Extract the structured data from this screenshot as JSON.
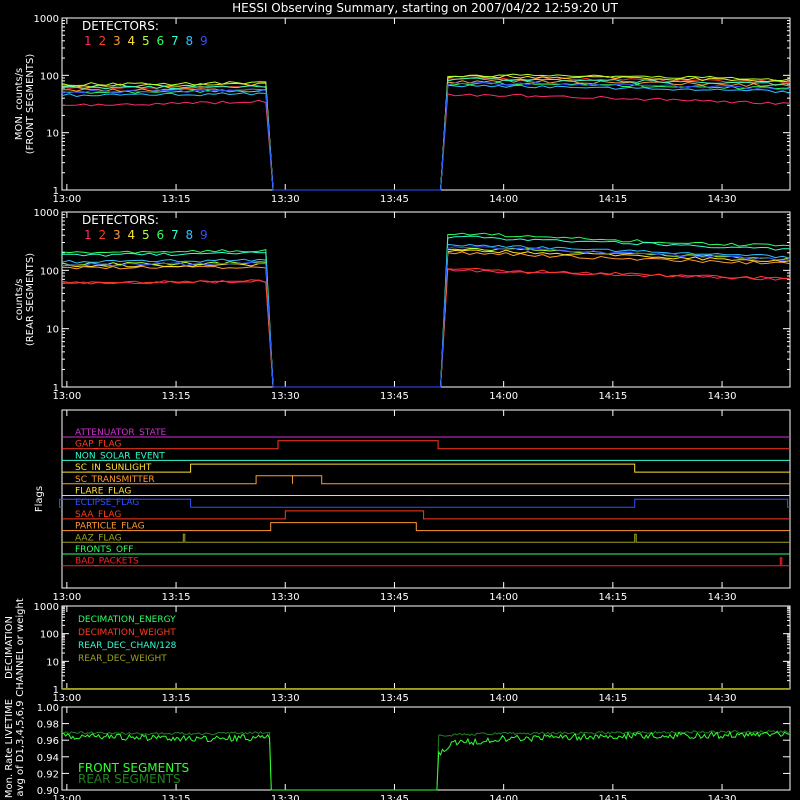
{
  "title": "HESSI Observing Summary, starting on 2007/04/22 12:59:20 UT",
  "time_ticks": [
    "13:00",
    "13:15",
    "13:30",
    "13:45",
    "14:00",
    "14:15",
    "14:30"
  ],
  "detectors_label": "DETECTORS:",
  "detector_colors": [
    "#ff2a6a",
    "#ff3a20",
    "#ff9a30",
    "#ffe030",
    "#b0ff30",
    "#30ff60",
    "#30ffd0",
    "#30c0ff",
    "#3050ff"
  ],
  "panels": {
    "front": {
      "ylabel_line1": "MON. counts/s",
      "ylabel_line2": "(FRONT SEGMENTS)",
      "ticks": [
        "1",
        "10",
        "100",
        "1000"
      ]
    },
    "rear": {
      "ylabel_line1": "counts/s",
      "ylabel_line2": "(REAR SEGMENTS)",
      "ticks": [
        "1",
        "10",
        "100",
        "1000"
      ]
    },
    "flags": {
      "ylabel": "Flags"
    },
    "decimation": {
      "ylabel_line1": "DECIMATION",
      "ylabel_line2": "CHANNEL or weight",
      "ticks": [
        "1",
        "10",
        "100",
        "1000"
      ]
    },
    "livetime": {
      "ylabel_line1": "Mon. Rate LIVETIME",
      "ylabel_line2": "avg of D1,3,4,5,6,9",
      "ticks": [
        "0.90",
        "0.92",
        "0.94",
        "0.96",
        "0.98",
        "1.00"
      ]
    }
  },
  "chart_data": [
    {
      "type": "line",
      "title": "HESSI Observing Summary, starting on 2007/04/22 12:59:20 UT",
      "ylabel": "MON. counts/s (FRONT SEGMENTS)",
      "yscale": "log",
      "ylim": [
        1,
        1000
      ],
      "xlim": [
        "12:59:20",
        "14:39:20"
      ],
      "gap": [
        "13:28",
        "13:52"
      ],
      "series": [
        {
          "name": "1",
          "color": "#ff2a6a",
          "x": [
            "13:00",
            "13:15",
            "13:28",
            "13:52",
            "14:00",
            "14:15",
            "14:30",
            "14:39"
          ],
          "values": [
            30,
            32,
            35,
            45,
            45,
            40,
            35,
            32
          ]
        },
        {
          "name": "2",
          "color": "#ff3a20",
          "x": [
            "13:00",
            "13:15",
            "13:28",
            "13:52",
            "14:00",
            "14:15",
            "14:30",
            "14:39"
          ],
          "values": [
            60,
            62,
            65,
            85,
            90,
            85,
            80,
            75
          ]
        },
        {
          "name": "3",
          "color": "#ff9a30",
          "x": [
            "13:00",
            "13:15",
            "13:28",
            "13:52",
            "14:00",
            "14:15",
            "14:30",
            "14:39"
          ],
          "values": [
            55,
            55,
            58,
            75,
            80,
            75,
            70,
            65
          ]
        },
        {
          "name": "4",
          "color": "#ffe030",
          "x": [
            "13:00",
            "13:15",
            "13:28",
            "13:52",
            "14:00",
            "14:15",
            "14:30",
            "14:39"
          ],
          "values": [
            65,
            68,
            70,
            95,
            95,
            90,
            85,
            80
          ]
        },
        {
          "name": "5",
          "color": "#b0ff30",
          "x": [
            "13:00",
            "13:15",
            "13:28",
            "13:52",
            "14:00",
            "14:15",
            "14:30",
            "14:39"
          ],
          "values": [
            70,
            72,
            75,
            100,
            100,
            95,
            90,
            85
          ]
        },
        {
          "name": "6",
          "color": "#30ff60",
          "x": [
            "13:00",
            "13:15",
            "13:28",
            "13:52",
            "14:00",
            "14:15",
            "14:30",
            "14:39"
          ],
          "values": [
            50,
            52,
            55,
            70,
            72,
            68,
            62,
            58
          ]
        },
        {
          "name": "7",
          "color": "#30ffd0",
          "x": [
            "13:00",
            "13:15",
            "13:28",
            "13:52",
            "14:00",
            "14:15",
            "14:30",
            "14:39"
          ],
          "values": [
            60,
            62,
            63,
            85,
            85,
            80,
            75,
            70
          ]
        },
        {
          "name": "8",
          "color": "#30c0ff",
          "x": [
            "13:00",
            "13:15",
            "13:28",
            "13:52",
            "14:00",
            "14:15",
            "14:30",
            "14:39"
          ],
          "values": [
            45,
            46,
            48,
            65,
            65,
            60,
            55,
            52
          ]
        },
        {
          "name": "9",
          "color": "#3050ff",
          "x": [
            "13:00",
            "13:15",
            "13:28",
            "13:52",
            "14:00",
            "14:15",
            "14:30",
            "14:39"
          ],
          "values": [
            52,
            53,
            55,
            72,
            72,
            68,
            62,
            58
          ]
        }
      ]
    },
    {
      "type": "line",
      "ylabel": "counts/s (REAR SEGMENTS)",
      "yscale": "log",
      "ylim": [
        1,
        1000
      ],
      "xlim": [
        "12:59:20",
        "14:39:20"
      ],
      "gap": [
        "13:28",
        "13:52"
      ],
      "series": [
        {
          "name": "1",
          "color": "#ff2a6a",
          "x": [
            "13:00",
            "13:15",
            "13:28",
            "13:52",
            "14:00",
            "14:15",
            "14:30",
            "14:39"
          ],
          "values": [
            60,
            62,
            65,
            100,
            95,
            85,
            75,
            70
          ]
        },
        {
          "name": "2",
          "color": "#ff3a20",
          "x": [
            "13:00",
            "13:15",
            "13:28",
            "13:52",
            "14:00",
            "14:15",
            "14:30",
            "14:39"
          ],
          "values": [
            62,
            64,
            66,
            105,
            100,
            88,
            78,
            72
          ]
        },
        {
          "name": "3",
          "color": "#ff9a30",
          "x": [
            "13:00",
            "13:15",
            "13:28",
            "13:52",
            "14:00",
            "14:15",
            "14:30",
            "14:39"
          ],
          "values": [
            110,
            112,
            115,
            200,
            190,
            160,
            140,
            130
          ]
        },
        {
          "name": "4",
          "color": "#ffe030",
          "x": [
            "13:00",
            "13:15",
            "13:28",
            "13:52",
            "14:00",
            "14:15",
            "14:30",
            "14:39"
          ],
          "values": [
            120,
            122,
            125,
            220,
            210,
            180,
            155,
            145
          ]
        },
        {
          "name": "5",
          "color": "#b0ff30",
          "x": [
            "13:00",
            "13:15",
            "13:28",
            "13:52",
            "14:00",
            "14:15",
            "14:30",
            "14:39"
          ],
          "values": [
            130,
            132,
            135,
            240,
            230,
            195,
            170,
            160
          ]
        },
        {
          "name": "6",
          "color": "#30ff60",
          "x": [
            "13:00",
            "13:15",
            "13:28",
            "13:52",
            "14:00",
            "14:15",
            "14:30",
            "14:39"
          ],
          "values": [
            200,
            210,
            220,
            430,
            400,
            330,
            280,
            260
          ]
        },
        {
          "name": "7",
          "color": "#30ffd0",
          "x": [
            "13:00",
            "13:15",
            "13:28",
            "13:52",
            "14:00",
            "14:15",
            "14:30",
            "14:39"
          ],
          "values": [
            180,
            190,
            200,
            380,
            350,
            300,
            250,
            230
          ]
        },
        {
          "name": "8",
          "color": "#30c0ff",
          "x": [
            "13:00",
            "13:15",
            "13:28",
            "13:52",
            "14:00",
            "14:15",
            "14:30",
            "14:39"
          ],
          "values": [
            140,
            145,
            150,
            270,
            260,
            220,
            185,
            170
          ]
        },
        {
          "name": "9",
          "color": "#3050ff",
          "x": [
            "13:00",
            "13:15",
            "13:28",
            "13:52",
            "14:00",
            "14:15",
            "14:30",
            "14:39"
          ],
          "values": [
            125,
            128,
            130,
            250,
            240,
            200,
            170,
            155
          ]
        }
      ]
    },
    {
      "type": "line",
      "ylabel": "Flags",
      "series": [
        {
          "name": "ATTENUATOR_STATE",
          "color": "#d030d0",
          "steps": []
        },
        {
          "name": "GAP_FLAG",
          "color": "#ff3a20",
          "steps": [
            [
              "13:29",
              "13:51"
            ]
          ]
        },
        {
          "name": "NON_SOLAR_EVENT",
          "color": "#30ffd0",
          "steps": []
        },
        {
          "name": "SC_IN_SUNLIGHT",
          "color": "#ffe030",
          "steps": [
            [
              "13:17",
              "14:18"
            ]
          ]
        },
        {
          "name": "SC_TRANSMITTER",
          "color": "#ff9a30",
          "steps": [
            [
              "13:26",
              "13:31"
            ],
            [
              "13:31",
              "13:35"
            ]
          ]
        },
        {
          "name": "FLARE_FLAG",
          "color": "#ffe030",
          "steps": []
        },
        {
          "name": "ECLIPSE_FLAG",
          "color": "#3050ff",
          "steps": [
            [
              "12:59",
              "13:17"
            ],
            [
              "14:18",
              "14:39"
            ]
          ]
        },
        {
          "name": "SAA_FLAG",
          "color": "#ff3a20",
          "steps": [
            [
              "13:30",
              "13:49"
            ]
          ]
        },
        {
          "name": "PARTICLE_FLAG",
          "color": "#ff9a30",
          "steps": [
            [
              "13:28",
              "13:48"
            ]
          ]
        },
        {
          "name": "AAZ_FLAG",
          "color": "#a0a020",
          "steps": [
            [
              "13:16",
              "13:16"
            ],
            [
              "14:18",
              "14:18"
            ]
          ]
        },
        {
          "name": "FRONTS_OFF",
          "color": "#30ff60",
          "steps": []
        },
        {
          "name": "BAD_PACKETS",
          "color": "#ff2020",
          "steps": [
            [
              "14:38",
              "14:38"
            ]
          ]
        }
      ]
    },
    {
      "type": "line",
      "ylabel": "DECIMATION CHANNEL or weight",
      "yscale": "log",
      "ylim": [
        1,
        1000
      ],
      "series": [
        {
          "name": "DECIMATION_ENERGY",
          "color": "#30ff60",
          "values": [
            1,
            1
          ]
        },
        {
          "name": "DECIMATION_WEIGHT",
          "color": "#ff3a20",
          "values": [
            1,
            1
          ]
        },
        {
          "name": "REAR_DEC_CHAN/128",
          "color": "#30ffd0",
          "values": [
            1,
            1
          ]
        },
        {
          "name": "REAR_DEC_WEIGHT",
          "color": "#a0a020",
          "values": [
            1,
            1
          ]
        }
      ]
    },
    {
      "type": "line",
      "ylabel": "Mon. Rate LIVETIME avg of D1,3,4,5,6,9",
      "ylim": [
        0.9,
        1.0
      ],
      "gap": [
        "13:28",
        "13:51"
      ],
      "series": [
        {
          "name": "FRONT SEGMENTS",
          "color": "#30ff30",
          "x": [
            "13:00",
            "13:10",
            "13:20",
            "13:28",
            "13:52",
            "14:00",
            "14:15",
            "14:30",
            "14:39"
          ],
          "values": [
            0.965,
            0.963,
            0.962,
            0.964,
            0.955,
            0.962,
            0.965,
            0.966,
            0.967
          ]
        },
        {
          "name": "REAR SEGMENTS",
          "color": "#208020",
          "x": [
            "13:00",
            "13:10",
            "13:20",
            "13:28",
            "13:52",
            "14:00",
            "14:15",
            "14:30",
            "14:39"
          ],
          "values": [
            0.969,
            0.968,
            0.968,
            0.969,
            0.966,
            0.968,
            0.969,
            0.97,
            0.97
          ]
        }
      ]
    }
  ]
}
